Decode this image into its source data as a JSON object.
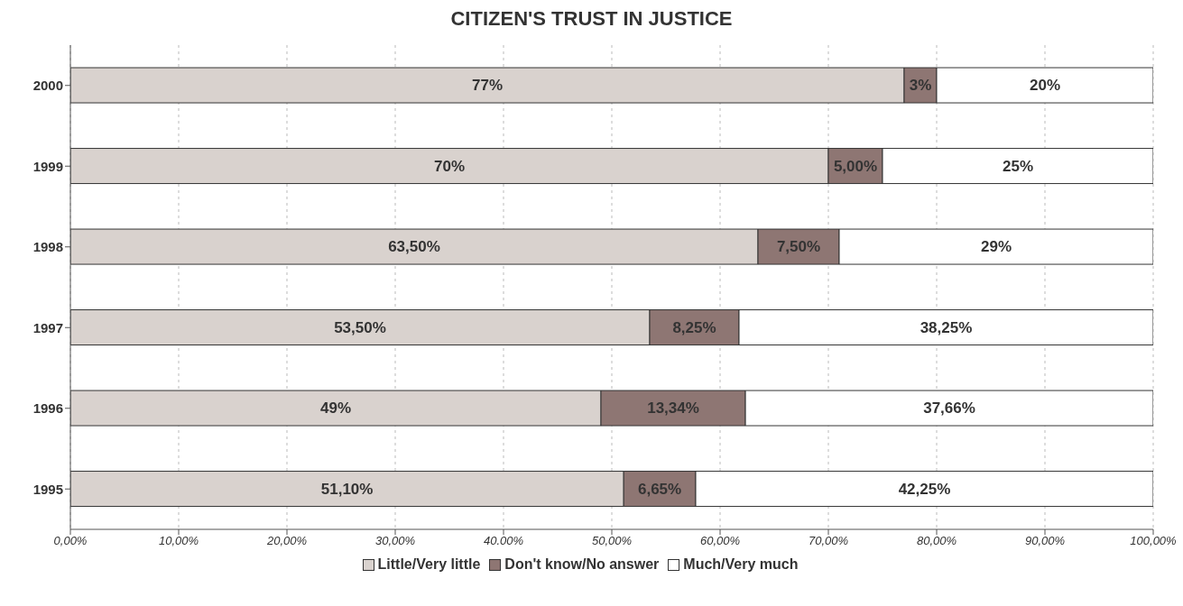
{
  "chart_data": {
    "type": "bar",
    "orientation": "horizontal",
    "stacked": true,
    "title": "CITIZEN'S TRUST IN JUSTICE",
    "categories": [
      "2000",
      "1999",
      "1998",
      "1997",
      "1996",
      "1995"
    ],
    "series": [
      {
        "name": "Little/Very little",
        "color": "#d9d2ce",
        "values": [
          77,
          70,
          63.5,
          53.5,
          49,
          51.1
        ],
        "value_labels": [
          "77%",
          "70%",
          "63,50%",
          "53,50%",
          "49%",
          "51,10%"
        ]
      },
      {
        "name": "Don't know/No answer",
        "color": "#8e7673",
        "values": [
          3,
          5,
          7.5,
          8.25,
          13.34,
          6.65
        ],
        "value_labels": [
          "3%",
          "5,00%",
          "7,50%",
          "8,25%",
          "13,34%",
          "6,65%"
        ]
      },
      {
        "name": "Much/Very much",
        "color": "#ffffff",
        "values": [
          20,
          25,
          29,
          38.25,
          37.66,
          42.25
        ],
        "value_labels": [
          "20%",
          "25%",
          "29%",
          "38,25%",
          "37,66%",
          "42,25%"
        ]
      }
    ],
    "xlim": [
      0,
      100
    ],
    "xticks": [
      {
        "value": 0,
        "label": "0,00%"
      },
      {
        "value": 10,
        "label": "10,00%"
      },
      {
        "value": 20,
        "label": "20,00%"
      },
      {
        "value": 30,
        "label": "30,00%"
      },
      {
        "value": 40,
        "label": "40.00%"
      },
      {
        "value": 50,
        "label": "50,00%"
      },
      {
        "value": 60,
        "label": "60,00%"
      },
      {
        "value": 70,
        "label": "70,00%"
      },
      {
        "value": 80,
        "label": "80,00%"
      },
      {
        "value": 90,
        "label": "90,00%"
      },
      {
        "value": 100,
        "label": "100,00%"
      }
    ],
    "grid": "x",
    "legend": "bottom"
  }
}
